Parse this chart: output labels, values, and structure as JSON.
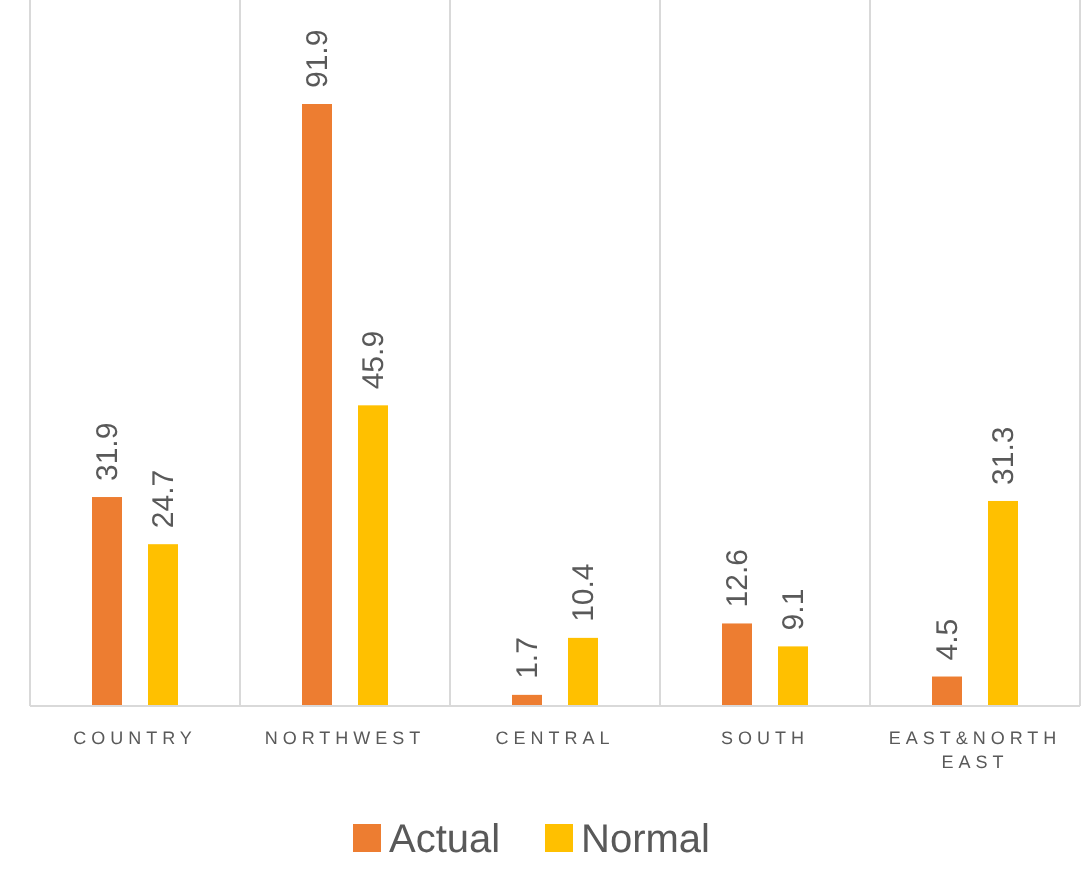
{
  "chart_data": {
    "type": "bar",
    "categories": [
      "COUNTRY",
      "NORTHWEST",
      "CENTRAL",
      "SOUTH",
      "EAST&NORTH EAST"
    ],
    "series": [
      {
        "name": "Actual",
        "color": "#ed7d31",
        "values": [
          31.9,
          91.9,
          1.7,
          12.6,
          4.5
        ]
      },
      {
        "name": "Normal",
        "color": "#ffc000",
        "values": [
          24.7,
          45.9,
          10.4,
          9.1,
          31.3
        ]
      }
    ],
    "data_labels": true,
    "grid": "x",
    "legend": "bottom"
  }
}
